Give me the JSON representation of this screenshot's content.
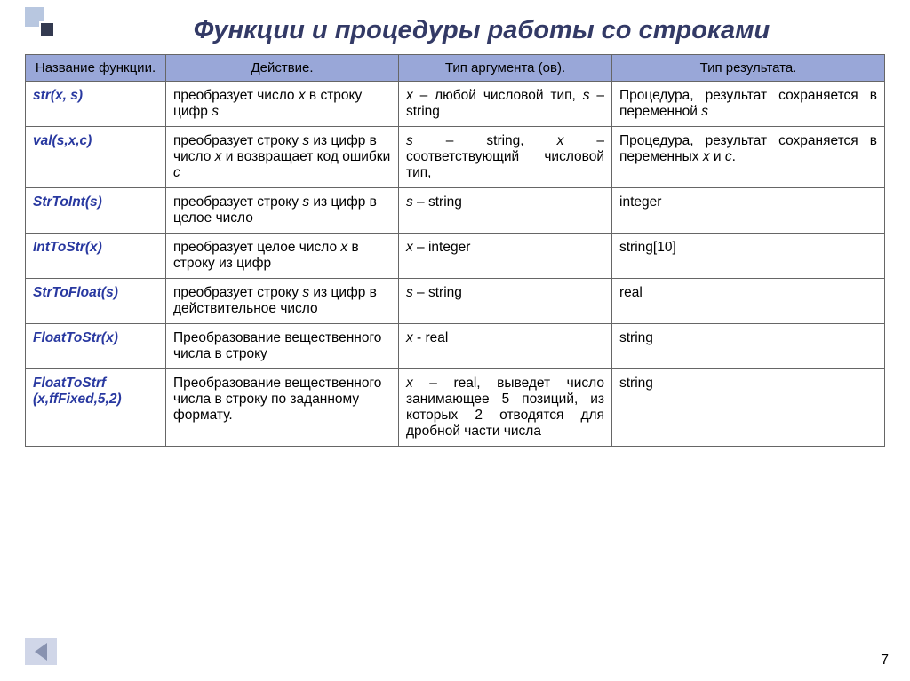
{
  "title": "Функции и процедуры работы со строками",
  "header": {
    "col1": "Название функции.",
    "col2": "Действие.",
    "col3": "Тип аргумента (ов).",
    "col4": "Тип результата."
  },
  "rows": [
    {
      "fn": "str(x, s)",
      "act": "преобразует число <span class='ital'>x</span> в строку цифр <span class='ital'>s</span>",
      "arg": "<span class='ital'>x</span> – любой числовой тип, <span class='ital'>s</span> – string",
      "res": "Процедура, результат сохраняется в переменной <span class='ital'>s</span>",
      "arg_justify": true,
      "res_justify": true
    },
    {
      "fn": "val(s,x,c)",
      "act": "преобразует строку <span class='ital'>s</span> из цифр в число <span class='ital'>x</span> и возвращает код ошибки <span class='ital'>с</span>",
      "arg": "<span class='ital'>s</span> – string, <span class='ital'>x</span> – соответствующий числовой тип,",
      "res": "Процедура, результат сохраняется в переменных <span class='ital'>x</span> и <span class='ital'>c</span>.",
      "arg_justify": true,
      "res_justify": true
    },
    {
      "fn": "StrToInt(s)",
      "act": "преобразует строку <span class='ital'>s</span> из цифр в целое число",
      "arg": "<span class='ital'>s</span> – string",
      "res": "integer"
    },
    {
      "fn": "IntToStr(x)",
      "act": "преобразует целое число <span class='ital'>x</span> в строку из цифр",
      "arg": "<span class='ital'>x</span> – integer",
      "res": "string[10]"
    },
    {
      "fn": "StrToFloat(s)",
      "act": "преобразует строку <span class='ital'>s</span> из цифр в действительное число",
      "arg": "<span class='ital'>s</span> – string",
      "res": "real"
    },
    {
      "fn": "FloatToStr(x)",
      "act": "Преобразование вещественного числа в строку",
      "arg": "<span class='ital'>x</span> - real",
      "res": "string"
    },
    {
      "fn": "FloatToStrf (x,ffFixed,5,2)",
      "act": "Преобразование вещественного числа в строку по заданному формату.",
      "arg": "<span class='ital'>x</span> – real, выведет число занимающее 5 позиций, из которых 2 отводятся для дробной части числа",
      "res": "string",
      "arg_justify": true
    }
  ],
  "page_number": "7"
}
